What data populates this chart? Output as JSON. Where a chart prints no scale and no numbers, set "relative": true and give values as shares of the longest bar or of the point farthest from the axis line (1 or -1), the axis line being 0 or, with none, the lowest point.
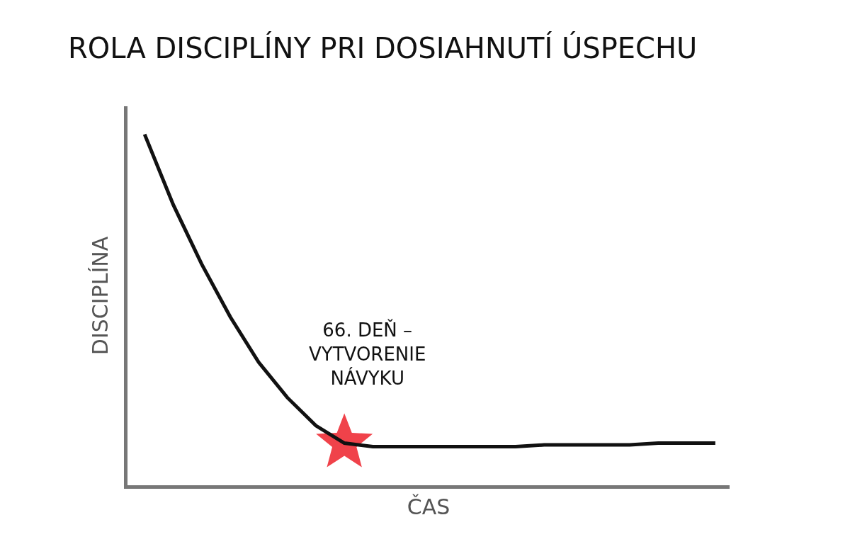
{
  "chart_data": {
    "type": "line",
    "title": "ROLA DISCIPLÍNY PRI DOSIAHNUTÍ ÚSPECHU",
    "xlabel": "ČAS",
    "ylabel": "DISCIPLÍNA",
    "relative": true,
    "legend": false,
    "marker": "none",
    "line_style": "solid",
    "categories": [
      null,
      null,
      null,
      null,
      null,
      null,
      null,
      null,
      null,
      null,
      null,
      null,
      null,
      null,
      null,
      null,
      null,
      null,
      null,
      null,
      null
    ],
    "series": [
      {
        "color": "#111111",
        "values": [
          1.0,
          0.8,
          0.63,
          0.48,
          0.35,
          0.25,
          0.17,
          0.12,
          0.11,
          0.11,
          0.11,
          0.11,
          0.11,
          0.11,
          0.115,
          0.115,
          0.115,
          0.115,
          0.12,
          0.12,
          0.12
        ]
      }
    ],
    "annotations": [
      "66. DEŇ –\nVYTVORENIE\nNÁVYKU"
    ]
  }
}
